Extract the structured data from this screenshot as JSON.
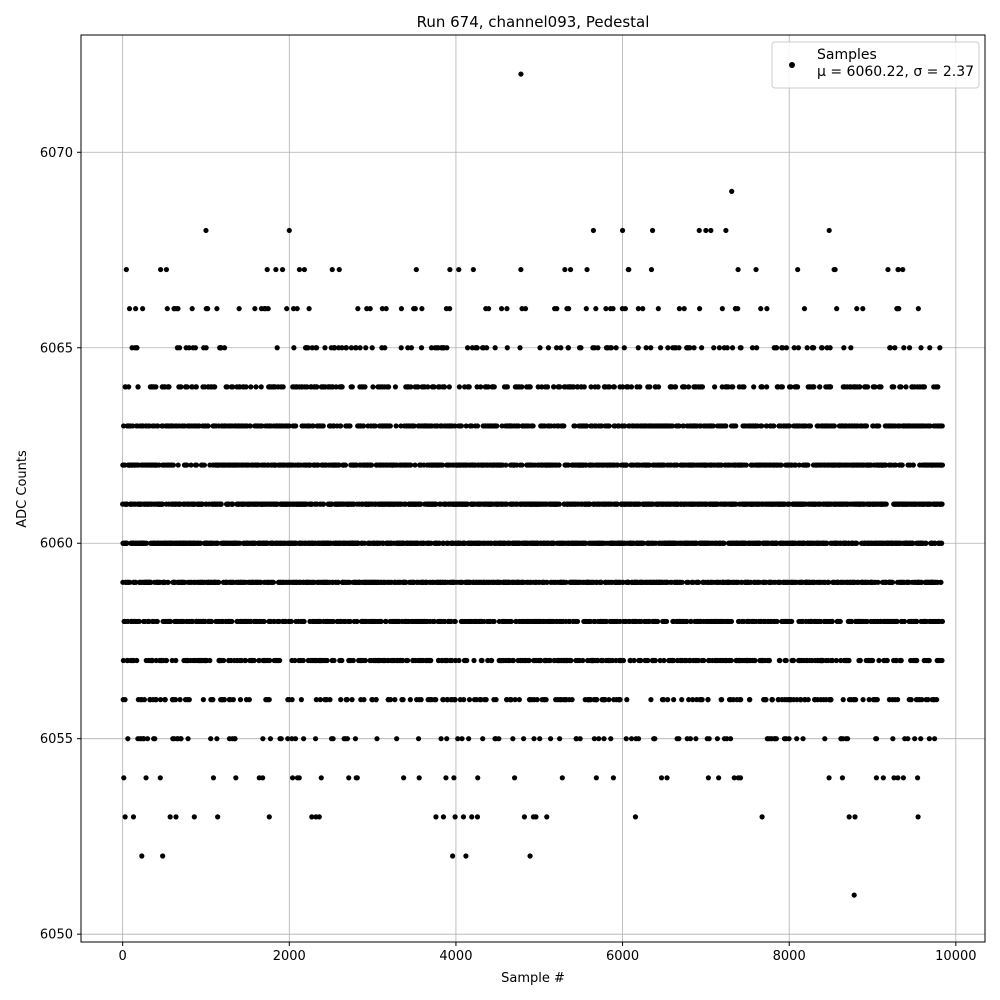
{
  "chart_data": {
    "type": "scatter",
    "title": "Run 674, channel093, Pedestal",
    "xlabel": "Sample #",
    "ylabel": "ADC Counts",
    "xlim": [
      -500,
      10350
    ],
    "ylim": [
      6049.8,
      6073.0
    ],
    "xticks": [
      0,
      2000,
      4000,
      6000,
      8000,
      10000
    ],
    "yticks": [
      6050,
      6055,
      6060,
      6065,
      6070
    ],
    "grid": true,
    "legend_placement": "top-right",
    "marker_color": "#000000",
    "series": [
      {
        "name": "Samples",
        "legend_stats": "μ = 6060.22, σ = 2.37",
        "x_range": [
          0,
          9840
        ],
        "mean": 6060.22,
        "std": 2.37,
        "value_levels": [
          6051,
          6052,
          6053,
          6054,
          6055,
          6056,
          6057,
          6058,
          6059,
          6060,
          6061,
          6062,
          6063,
          6064,
          6065,
          6066,
          6067,
          6068,
          6069,
          6072
        ],
        "dense_levels": [
          6057,
          6058,
          6059,
          6060,
          6061,
          6062
        ],
        "notable_points": [
          {
            "x": 4780,
            "y": 6072
          },
          {
            "x": 7310,
            "y": 6069
          },
          {
            "x": 8780,
            "y": 6051
          },
          {
            "x": 1000,
            "y": 6068
          },
          {
            "x": 2000,
            "y": 6068
          },
          {
            "x": 5650,
            "y": 6068
          },
          {
            "x": 6000,
            "y": 6068
          },
          {
            "x": 6360,
            "y": 6068
          },
          {
            "x": 6920,
            "y": 6068
          },
          {
            "x": 7000,
            "y": 6068
          },
          {
            "x": 7060,
            "y": 6068
          },
          {
            "x": 7240,
            "y": 6068
          },
          {
            "x": 8480,
            "y": 6068
          },
          {
            "x": 230,
            "y": 6052
          },
          {
            "x": 480,
            "y": 6052
          },
          {
            "x": 3960,
            "y": 6052
          },
          {
            "x": 4120,
            "y": 6052
          },
          {
            "x": 4890,
            "y": 6052
          },
          {
            "x": 30,
            "y": 6053
          },
          {
            "x": 570,
            "y": 6053
          },
          {
            "x": 640,
            "y": 6053
          },
          {
            "x": 1140,
            "y": 6053
          },
          {
            "x": 1760,
            "y": 6053
          },
          {
            "x": 2270,
            "y": 6053
          },
          {
            "x": 2320,
            "y": 6053
          },
          {
            "x": 2360,
            "y": 6053
          },
          {
            "x": 3760,
            "y": 6053
          },
          {
            "x": 3850,
            "y": 6053
          },
          {
            "x": 3990,
            "y": 6053
          },
          {
            "x": 4090,
            "y": 6053
          },
          {
            "x": 4190,
            "y": 6053
          },
          {
            "x": 4930,
            "y": 6053
          },
          {
            "x": 4960,
            "y": 6053
          },
          {
            "x": 5090,
            "y": 6053
          },
          {
            "x": 8720,
            "y": 6053
          },
          {
            "x": 8790,
            "y": 6053
          }
        ]
      }
    ]
  }
}
